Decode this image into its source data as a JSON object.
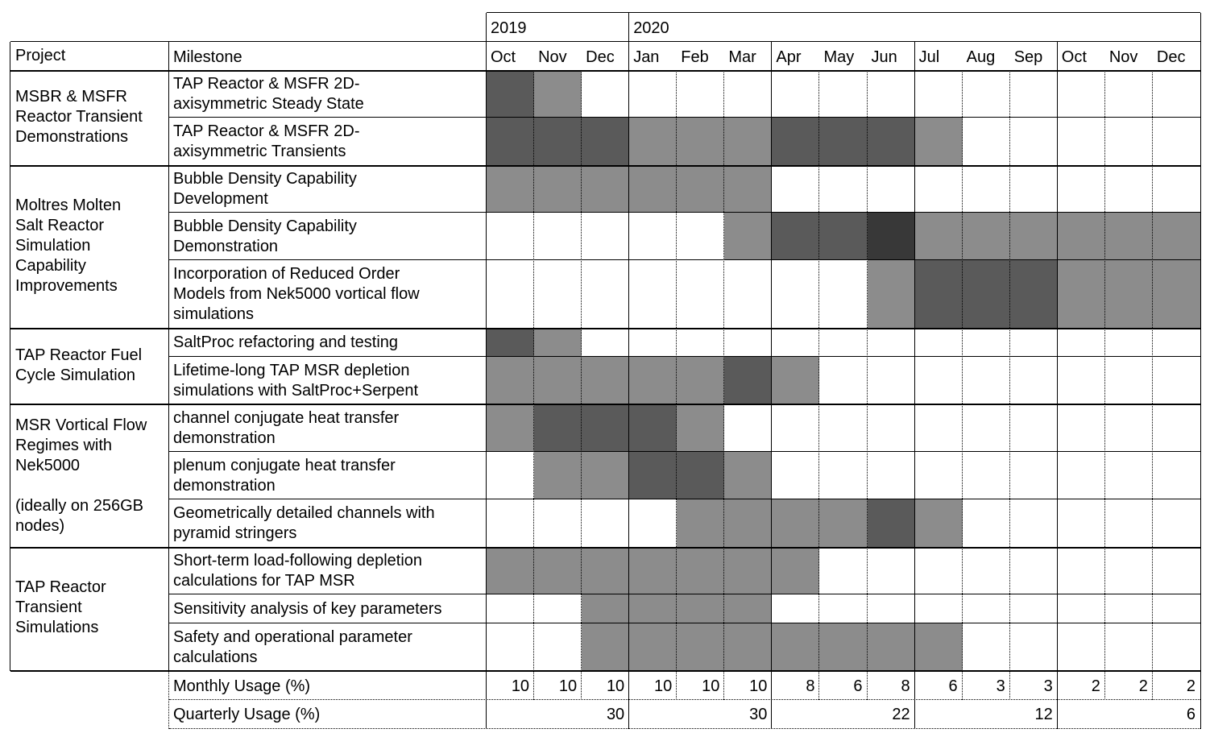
{
  "header": {
    "col_project": "Project",
    "col_milestone": "Milestone",
    "years": [
      {
        "label": "2019"
      },
      {
        "label": "2020"
      }
    ],
    "months": [
      "Oct",
      "Nov",
      "Dec",
      "Jan",
      "Feb",
      "Mar",
      "Apr",
      "May",
      "Jun",
      "Jul",
      "Aug",
      "Sep",
      "Oct",
      "Nov",
      "Dec"
    ]
  },
  "colors": {
    "light": "#8c8c8c",
    "medium": "#5a5a5a",
    "dark": "#383838",
    "empty": "#ffffff"
  },
  "projects": [
    {
      "lines": [
        "MSBR & MSFR",
        "Reactor Transient",
        "Demonstrations"
      ]
    },
    {
      "lines": [
        "Moltres Molten",
        "Salt Reactor",
        "Simulation",
        "Capability",
        "Improvements"
      ]
    },
    {
      "lines": [
        "TAP Reactor Fuel",
        "Cycle Simulation"
      ]
    },
    {
      "lines": [
        "MSR Vortical Flow",
        "Regimes with",
        "Nek5000",
        "",
        "(ideally on 256GB",
        "nodes)"
      ]
    },
    {
      "lines": [
        "TAP Reactor",
        "Transient",
        "Simulations"
      ]
    }
  ],
  "milestones": [
    {
      "lines": [
        "TAP Reactor & MSFR 2D-",
        "axisymmetric Steady State"
      ],
      "cells": [
        2,
        1,
        0,
        0,
        0,
        0,
        0,
        0,
        0,
        0,
        0,
        0,
        0,
        0,
        0
      ]
    },
    {
      "lines": [
        "TAP Reactor & MSFR 2D-",
        "axisymmetric Transients"
      ],
      "cells": [
        2,
        2,
        2,
        1,
        1,
        1,
        2,
        2,
        2,
        1,
        0,
        0,
        0,
        0,
        0
      ]
    },
    {
      "lines": [
        "Bubble Density Capability",
        "Development"
      ],
      "cells": [
        1,
        1,
        1,
        1,
        1,
        1,
        0,
        0,
        0,
        0,
        0,
        0,
        0,
        0,
        0
      ]
    },
    {
      "lines": [
        "Bubble Density Capability",
        "Demonstration"
      ],
      "cells": [
        0,
        0,
        0,
        0,
        0,
        1,
        2,
        2,
        3,
        1,
        1,
        1,
        1,
        1,
        1
      ]
    },
    {
      "lines": [
        "Incorporation of Reduced Order",
        "Models from Nek5000 vortical flow",
        "simulations"
      ],
      "cells": [
        0,
        0,
        0,
        0,
        0,
        0,
        0,
        0,
        1,
        2,
        2,
        2,
        1,
        1,
        1
      ]
    },
    {
      "lines": [
        "SaltProc refactoring and testing"
      ],
      "cells": [
        2,
        1,
        0,
        0,
        0,
        0,
        0,
        0,
        0,
        0,
        0,
        0,
        0,
        0,
        0
      ]
    },
    {
      "lines": [
        "Lifetime-long TAP MSR depletion",
        "simulations with SaltProc+Serpent"
      ],
      "cells": [
        1,
        1,
        1,
        1,
        1,
        2,
        1,
        0,
        0,
        0,
        0,
        0,
        0,
        0,
        0
      ]
    },
    {
      "lines": [
        "channel conjugate heat transfer",
        "demonstration"
      ],
      "cells": [
        1,
        2,
        2,
        2,
        1,
        0,
        0,
        0,
        0,
        0,
        0,
        0,
        0,
        0,
        0
      ]
    },
    {
      "lines": [
        "plenum conjugate heat transfer",
        "demonstration"
      ],
      "cells": [
        0,
        1,
        1,
        2,
        2,
        1,
        0,
        0,
        0,
        0,
        0,
        0,
        0,
        0,
        0
      ]
    },
    {
      "lines": [
        "Geometrically detailed channels with",
        "pyramid stringers"
      ],
      "cells": [
        0,
        0,
        0,
        0,
        1,
        1,
        1,
        1,
        2,
        1,
        0,
        0,
        0,
        0,
        0
      ]
    },
    {
      "lines": [
        "Short-term load-following depletion",
        "calculations for TAP MSR"
      ],
      "cells": [
        1,
        1,
        1,
        1,
        1,
        1,
        1,
        0,
        0,
        0,
        0,
        0,
        0,
        0,
        0
      ]
    },
    {
      "lines": [
        "Sensitivity analysis of key parameters"
      ],
      "cells": [
        0,
        0,
        1,
        1,
        1,
        1,
        0,
        0,
        0,
        0,
        0,
        0,
        0,
        0,
        0
      ]
    },
    {
      "lines": [
        "Safety and operational parameter",
        "calculations"
      ],
      "cells": [
        0,
        0,
        1,
        1,
        1,
        1,
        1,
        1,
        1,
        1,
        0,
        0,
        0,
        0,
        0
      ]
    }
  ],
  "usage": {
    "monthly_label": "Monthly Usage (%)",
    "monthly": [
      "10",
      "10",
      "10",
      "10",
      "10",
      "10",
      "8",
      "6",
      "8",
      "6",
      "3",
      "3",
      "2",
      "2",
      "2"
    ],
    "quarterly_label": "Quarterly Usage (%)",
    "quarterly": [
      "30",
      "30",
      "22",
      "12",
      "6"
    ]
  }
}
